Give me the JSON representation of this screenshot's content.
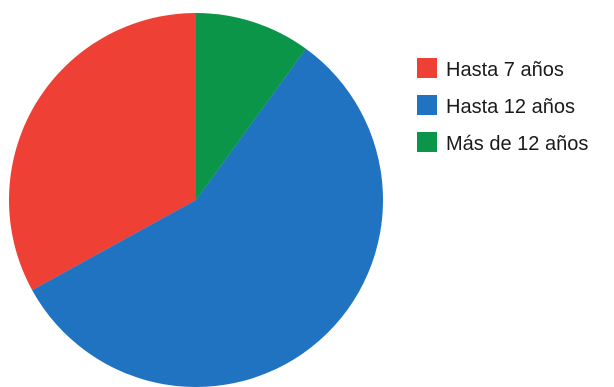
{
  "chart_data": {
    "type": "pie",
    "title": "",
    "categories": [
      "Hasta 7 años",
      "Hasta 12 años",
      "Más de 12 años"
    ],
    "values": [
      33,
      57,
      10
    ],
    "colors": [
      "#ee4035",
      "#1f73c1",
      "#0b9548"
    ],
    "start_angle_deg": 0,
    "direction": "counterclockwise",
    "legend": {
      "position": "right",
      "entries": [
        "Hasta 7 años",
        "Hasta 12 años",
        "Más de 12 años"
      ]
    }
  }
}
